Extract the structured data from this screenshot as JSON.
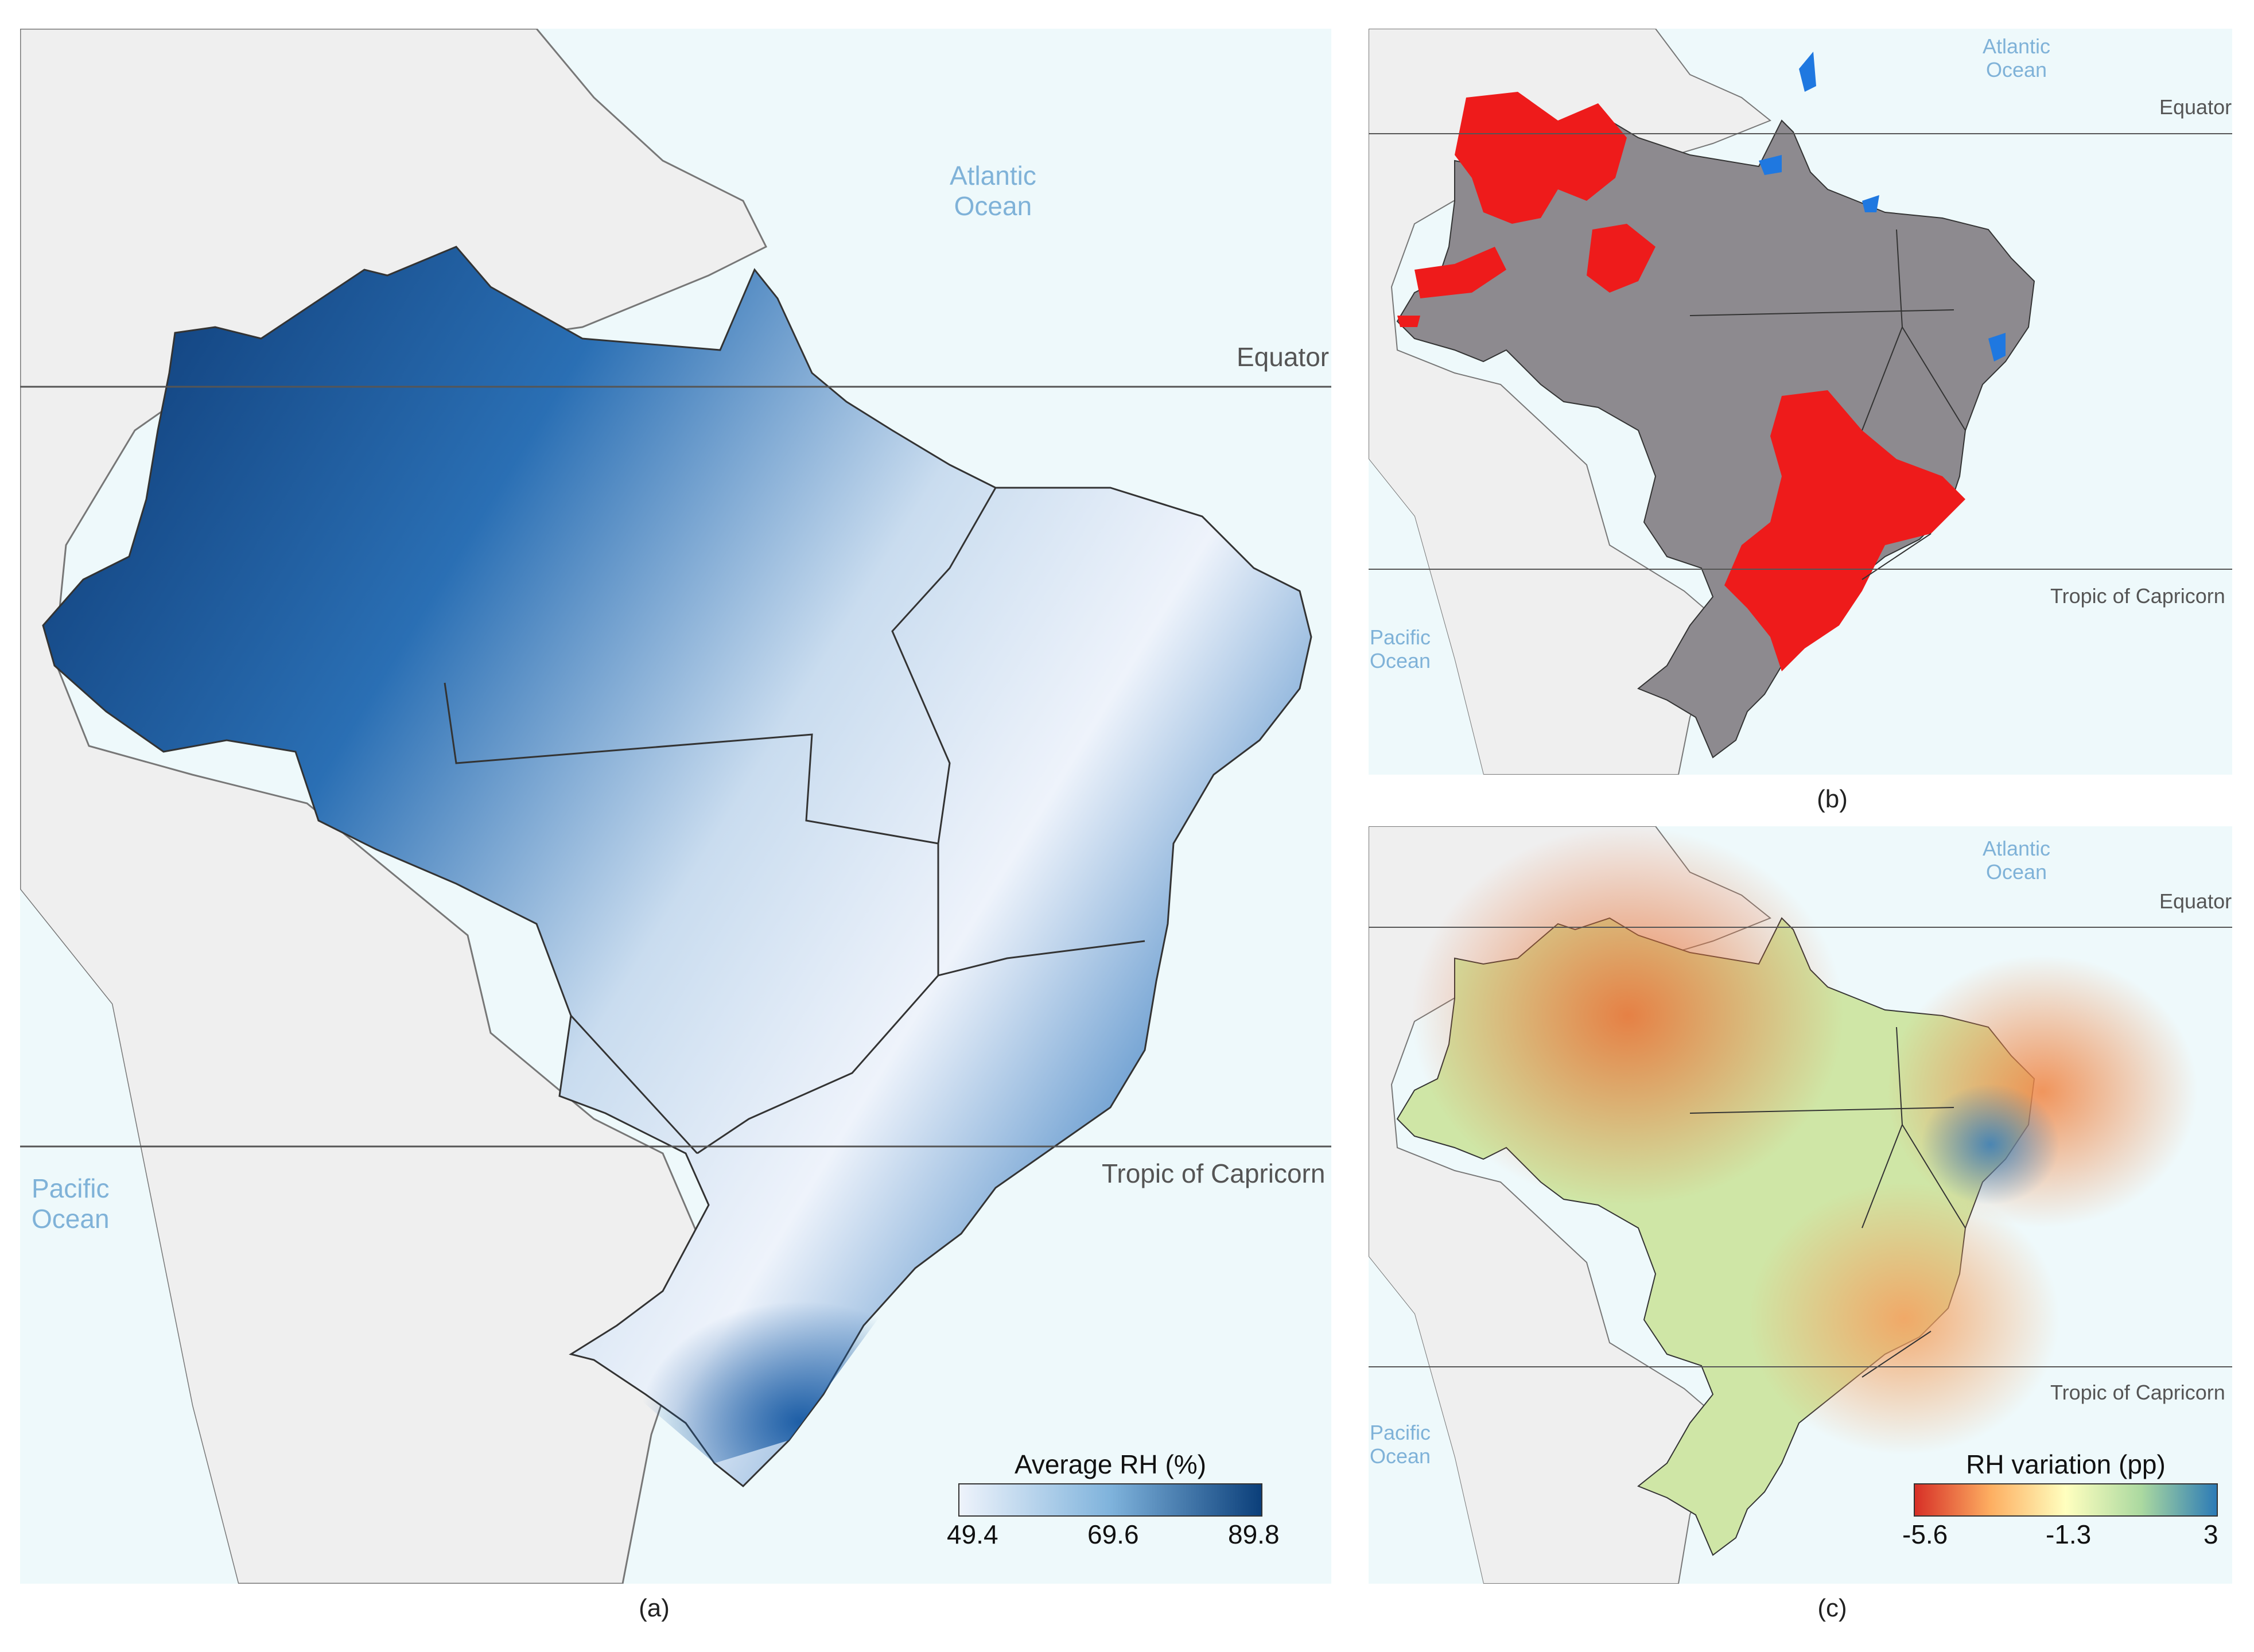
{
  "panels": {
    "a": {
      "caption": "(a)",
      "labels": {
        "atlantic": "Atlantic\nOcean",
        "pacific": "Pacific\nOcean",
        "equator": "Equator",
        "tropic": "Tropic of Capricorn"
      },
      "legend": {
        "title": "Average RH (%)",
        "min": "49.4",
        "mid": "69.6",
        "max": "89.8",
        "color_low": "#eef3fb",
        "color_mid": "#7fb3dc",
        "color_high": "#0b3f7a"
      }
    },
    "b": {
      "caption": "(b)",
      "labels": {
        "atlantic": "Atlantic\nOcean",
        "pacific": "Pacific\nOcean",
        "equator": "Equator",
        "tropic": "Tropic of Capricorn"
      },
      "colors": {
        "base": "#8d8a8f",
        "red": "#ee1b1b",
        "blue": "#1f78e0"
      }
    },
    "c": {
      "caption": "(c)",
      "labels": {
        "atlantic": "Atlantic\nOcean",
        "pacific": "Pacific\nOcean",
        "equator": "Equator",
        "tropic": "Tropic of Capricorn"
      },
      "legend": {
        "title": "RH variation (pp)",
        "min": "-5.6",
        "mid": "-1.3",
        "max": "3",
        "color_low": "#d73027",
        "color_mid": "#ffffbf",
        "color_high": "#2c7bb6"
      }
    }
  },
  "colors": {
    "ocean": "#eef9fb",
    "land": "#efefef",
    "border": "#666666"
  }
}
